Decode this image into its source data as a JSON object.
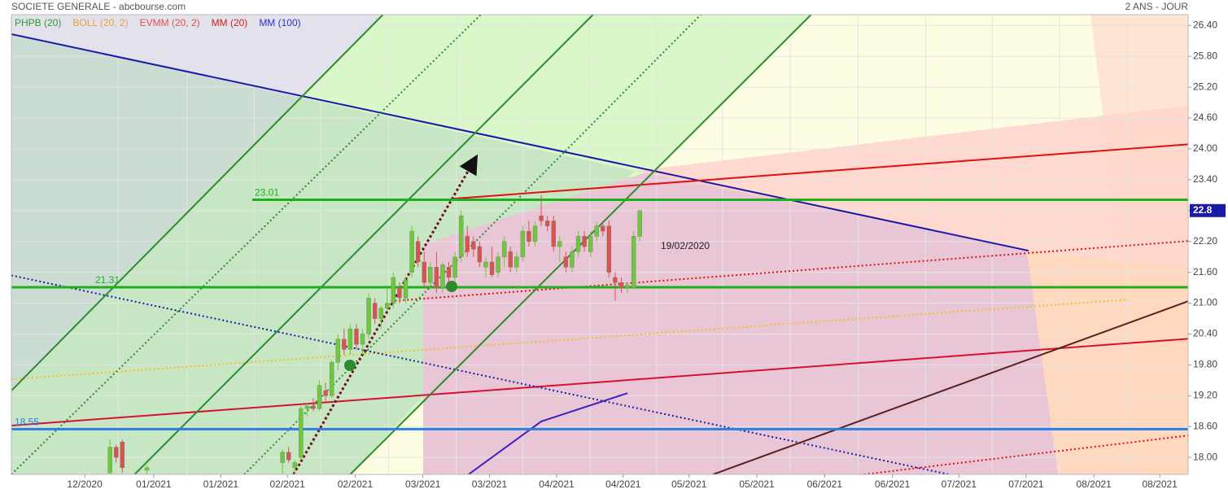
{
  "chart_data": {
    "type": "candlestick",
    "title": "SOCIETE GENERALE - abcbourse.com",
    "subtitle": "2 ANS - JOUR",
    "legend": [
      {
        "name": "PHPB (20)",
        "color": "#2e9a2e"
      },
      {
        "name": "BOLL (20, 2)",
        "color": "#e8a040"
      },
      {
        "name": "EVMM (20, 2)",
        "color": "#e05050"
      },
      {
        "name": "MM (20)",
        "color": "#d02020"
      },
      {
        "name": "MM (100)",
        "color": "#3030c0"
      }
    ],
    "last_price": 22.8,
    "annotation": "19/02/2020",
    "xlim": [
      0,
      191
    ],
    "ylim": [
      17.67,
      26.61
    ],
    "yticks": [
      {
        "value": 18.0,
        "label": "18.00"
      },
      {
        "value": 18.6,
        "label": "18.60"
      },
      {
        "value": 19.2,
        "label": "19.20"
      },
      {
        "value": 19.8,
        "label": "19.80"
      },
      {
        "value": 20.4,
        "label": "20.40"
      },
      {
        "value": 21.0,
        "label": "21.00"
      },
      {
        "value": 21.6,
        "label": "21.60"
      },
      {
        "value": 22.2,
        "label": "22.20"
      },
      {
        "value": 22.8,
        "label": "22.80"
      },
      {
        "value": 23.4,
        "label": "23.40"
      },
      {
        "value": 24.0,
        "label": "24.00"
      },
      {
        "value": 24.6,
        "label": "24.60"
      },
      {
        "value": 25.2,
        "label": "25.20"
      },
      {
        "value": 25.8,
        "label": "25.80"
      },
      {
        "value": 26.4,
        "label": "26.40"
      }
    ],
    "xticks": [
      {
        "value": 11.9,
        "label": "12/2020"
      },
      {
        "value": 23.1,
        "label": "01/2021"
      },
      {
        "value": 34.0,
        "label": "01/2021"
      },
      {
        "value": 44.8,
        "label": "02/2021"
      },
      {
        "value": 55.8,
        "label": "02/2021"
      },
      {
        "value": 66.8,
        "label": "03/2021"
      },
      {
        "value": 77.6,
        "label": "03/2021"
      },
      {
        "value": 88.5,
        "label": "04/2021"
      },
      {
        "value": 99.3,
        "label": "04/2021"
      },
      {
        "value": 110.0,
        "label": "05/2021"
      },
      {
        "value": 121.0,
        "label": "05/2021"
      },
      {
        "value": 132.0,
        "label": "06/2021"
      },
      {
        "value": 143.0,
        "label": "06/2021"
      },
      {
        "value": 153.8,
        "label": "07/2021"
      },
      {
        "value": 164.7,
        "label": "07/2021"
      },
      {
        "value": 175.7,
        "label": "08/2021"
      },
      {
        "value": 186.4,
        "label": "08/2021"
      }
    ],
    "grid": true,
    "up_color": "#6ec83c",
    "down_color": "#d9534f",
    "candles": [
      {
        "x": 16,
        "open": 17.7,
        "high": 18.35,
        "low": 17.67,
        "close": 18.2
      },
      {
        "x": 17,
        "open": 18.2,
        "high": 18.25,
        "low": 17.9,
        "close": 18.0
      },
      {
        "x": 18,
        "open": 18.3,
        "high": 18.35,
        "low": 17.7,
        "close": 17.8
      },
      {
        "x": 22,
        "open": 17.75,
        "high": 17.85,
        "low": 17.67,
        "close": 17.8
      },
      {
        "x": 44,
        "open": 17.9,
        "high": 18.15,
        "low": 17.67,
        "close": 18.1
      },
      {
        "x": 45,
        "open": 18.1,
        "high": 18.2,
        "low": 17.9,
        "close": 17.95
      },
      {
        "x": 46,
        "open": 17.8,
        "high": 17.95,
        "low": 17.67,
        "close": 17.9
      },
      {
        "x": 47,
        "open": 18.0,
        "high": 19.0,
        "low": 17.95,
        "close": 18.95
      },
      {
        "x": 48,
        "open": 18.95,
        "high": 19.05,
        "low": 18.8,
        "close": 19.0
      },
      {
        "x": 49,
        "open": 19.0,
        "high": 19.15,
        "low": 18.9,
        "close": 18.95
      },
      {
        "x": 50,
        "open": 18.95,
        "high": 19.5,
        "low": 18.9,
        "close": 19.4
      },
      {
        "x": 51,
        "open": 19.3,
        "high": 19.45,
        "low": 19.1,
        "close": 19.2
      },
      {
        "x": 52,
        "open": 19.2,
        "high": 19.9,
        "low": 19.15,
        "close": 19.85
      },
      {
        "x": 53,
        "open": 19.85,
        "high": 20.4,
        "low": 19.7,
        "close": 20.3
      },
      {
        "x": 54,
        "open": 20.3,
        "high": 20.5,
        "low": 20.0,
        "close": 20.1
      },
      {
        "x": 55,
        "open": 20.1,
        "high": 20.6,
        "low": 20.0,
        "close": 20.5
      },
      {
        "x": 56,
        "open": 20.5,
        "high": 20.6,
        "low": 20.1,
        "close": 20.2
      },
      {
        "x": 57,
        "open": 20.2,
        "high": 20.5,
        "low": 20.0,
        "close": 20.4
      },
      {
        "x": 58,
        "open": 20.4,
        "high": 21.2,
        "low": 20.3,
        "close": 21.1
      },
      {
        "x": 59,
        "open": 21.0,
        "high": 21.1,
        "low": 20.6,
        "close": 20.7
      },
      {
        "x": 60,
        "open": 20.7,
        "high": 20.95,
        "low": 20.5,
        "close": 20.9
      },
      {
        "x": 61,
        "open": 20.9,
        "high": 21.3,
        "low": 20.85,
        "close": 21.0
      },
      {
        "x": 62,
        "open": 21.0,
        "high": 21.6,
        "low": 20.9,
        "close": 21.5
      },
      {
        "x": 63,
        "open": 21.3,
        "high": 21.4,
        "low": 21.0,
        "close": 21.1
      },
      {
        "x": 64,
        "open": 21.1,
        "high": 21.5,
        "low": 21.0,
        "close": 21.45
      },
      {
        "x": 65,
        "open": 21.6,
        "high": 22.5,
        "low": 21.5,
        "close": 22.4
      },
      {
        "x": 66,
        "open": 22.2,
        "high": 22.3,
        "low": 21.7,
        "close": 21.8
      },
      {
        "x": 67,
        "open": 21.8,
        "high": 22.0,
        "low": 21.3,
        "close": 21.4
      },
      {
        "x": 68,
        "open": 21.4,
        "high": 21.8,
        "low": 21.3,
        "close": 21.7
      },
      {
        "x": 69,
        "open": 21.7,
        "high": 22.0,
        "low": 21.2,
        "close": 21.3
      },
      {
        "x": 70,
        "open": 21.3,
        "high": 21.8,
        "low": 21.2,
        "close": 21.75
      },
      {
        "x": 71,
        "open": 21.7,
        "high": 21.8,
        "low": 21.4,
        "close": 21.5
      },
      {
        "x": 72,
        "open": 21.5,
        "high": 22.0,
        "low": 21.4,
        "close": 21.9
      },
      {
        "x": 73,
        "open": 21.9,
        "high": 22.8,
        "low": 21.8,
        "close": 22.7
      },
      {
        "x": 74,
        "open": 22.3,
        "high": 22.5,
        "low": 21.9,
        "close": 22.0
      },
      {
        "x": 75,
        "open": 22.2,
        "high": 22.3,
        "low": 21.9,
        "close": 22.05
      },
      {
        "x": 76,
        "open": 22.1,
        "high": 22.2,
        "low": 21.7,
        "close": 21.8
      },
      {
        "x": 77,
        "open": 21.7,
        "high": 21.9,
        "low": 21.5,
        "close": 21.8
      },
      {
        "x": 78,
        "open": 21.8,
        "high": 22.1,
        "low": 21.5,
        "close": 21.55
      },
      {
        "x": 79,
        "open": 21.6,
        "high": 22.0,
        "low": 21.5,
        "close": 21.9
      },
      {
        "x": 80,
        "open": 21.9,
        "high": 22.3,
        "low": 21.7,
        "close": 22.2
      },
      {
        "x": 81,
        "open": 22.0,
        "high": 22.1,
        "low": 21.6,
        "close": 21.7
      },
      {
        "x": 82,
        "open": 21.7,
        "high": 22.0,
        "low": 21.6,
        "close": 21.9
      },
      {
        "x": 83,
        "open": 21.9,
        "high": 22.5,
        "low": 21.8,
        "close": 22.4
      },
      {
        "x": 84,
        "open": 22.4,
        "high": 22.6,
        "low": 22.1,
        "close": 22.2
      },
      {
        "x": 85,
        "open": 22.2,
        "high": 22.6,
        "low": 22.1,
        "close": 22.5
      },
      {
        "x": 86,
        "open": 22.7,
        "high": 23.1,
        "low": 22.5,
        "close": 22.6
      },
      {
        "x": 87,
        "open": 22.6,
        "high": 22.7,
        "low": 22.4,
        "close": 22.5
      },
      {
        "x": 88,
        "open": 22.6,
        "high": 22.7,
        "low": 22.0,
        "close": 22.1
      },
      {
        "x": 89,
        "open": 22.1,
        "high": 22.3,
        "low": 21.8,
        "close": 22.2
      },
      {
        "x": 90,
        "open": 21.9,
        "high": 22.0,
        "low": 21.6,
        "close": 21.7
      },
      {
        "x": 91,
        "open": 21.7,
        "high": 22.1,
        "low": 21.6,
        "close": 22.0
      },
      {
        "x": 92,
        "open": 22.0,
        "high": 22.4,
        "low": 21.9,
        "close": 22.3
      },
      {
        "x": 93,
        "open": 22.3,
        "high": 22.4,
        "low": 22.0,
        "close": 22.1
      },
      {
        "x": 94,
        "open": 22.0,
        "high": 22.4,
        "low": 21.9,
        "close": 22.3
      },
      {
        "x": 95,
        "open": 22.3,
        "high": 22.6,
        "low": 22.2,
        "close": 22.5
      },
      {
        "x": 96,
        "open": 22.5,
        "high": 22.6,
        "low": 22.3,
        "close": 22.4
      },
      {
        "x": 97,
        "open": 22.5,
        "high": 22.6,
        "low": 21.5,
        "close": 21.6
      },
      {
        "x": 98,
        "open": 21.5,
        "high": 21.6,
        "low": 21.05,
        "close": 21.4
      },
      {
        "x": 99,
        "open": 21.4,
        "high": 21.5,
        "low": 21.2,
        "close": 21.3
      },
      {
        "x": 100,
        "open": 21.3,
        "high": 21.4,
        "low": 21.2,
        "close": 21.35
      },
      {
        "x": 101,
        "open": 21.3,
        "high": 22.4,
        "low": 21.3,
        "close": 22.3
      },
      {
        "x": 102,
        "open": 22.3,
        "high": 22.8,
        "low": 22.2,
        "close": 22.8
      }
    ],
    "levels": [
      {
        "value": 23.01,
        "color": "#1db01d"
      },
      {
        "value": 21.31,
        "color": "#1db01d"
      },
      {
        "value": 18.55,
        "color": "#2a7fe0"
      }
    ],
    "lines": [
      {
        "x": [
          0,
          165.1
        ],
        "y": [
          26.23,
          22.02
        ],
        "color": "#1a1aa8",
        "dash": false
      },
      {
        "x": [
          71.6,
          191.3
        ],
        "y": [
          23.03,
          24.09
        ],
        "color": "#e01010",
        "dash": false
      },
      {
        "x": [
          0,
          191.3
        ],
        "y": [
          18.62,
          20.31
        ],
        "color": "#d81030",
        "dash": false
      },
      {
        "x": [
          61.6,
          191.3
        ],
        "y": [
          21.04,
          22.21
        ],
        "color": "#e01010",
        "dash": true
      },
      {
        "x": [
          0,
          181.3
        ],
        "y": [
          19.52,
          21.07
        ],
        "color": "#f0c020",
        "dash": true
      },
      {
        "x": [
          0,
          152.2
        ],
        "y": [
          21.54,
          17.67
        ],
        "color": "#1a1aa8",
        "dash": true
      },
      {
        "x": [
          113.9,
          191.3
        ],
        "y": [
          17.67,
          21.05
        ],
        "color": "#5a2020",
        "dash": false
      },
      {
        "x": [
          138.4,
          191.3
        ],
        "y": [
          17.67,
          18.43
        ],
        "color": "#e01010",
        "dash": true
      },
      {
        "x": [
          0,
          60.3
        ],
        "y": [
          19.3,
          26.61
        ],
        "color": "#2e8a2e",
        "dash": false
      },
      {
        "x": [
          0,
          76.2
        ],
        "y": [
          17.67,
          26.61
        ],
        "color": "#2e8a2e",
        "dash": true
      },
      {
        "x": [
          20.0,
          94.4
        ],
        "y": [
          17.67,
          26.61
        ],
        "color": "#2e8a2e",
        "dash": false
      },
      {
        "x": [
          37.8,
          111.9
        ],
        "y": [
          17.67,
          26.61
        ],
        "color": "#2e8a2e",
        "dash": true
      },
      {
        "x": [
          55.0,
          129.8
        ],
        "y": [
          17.67,
          26.61
        ],
        "color": "#2e8a2e",
        "dash": false
      },
      {
        "x": [
          74.2,
          86,
          100
        ],
        "y": [
          17.67,
          18.7,
          19.25
        ],
        "color": "#4020c0",
        "dash": false
      },
      {
        "x": [
          45.8,
          74.9
        ],
        "y": [
          17.67,
          23.73
        ],
        "color": "#6a1020",
        "dash": true
      }
    ]
  }
}
